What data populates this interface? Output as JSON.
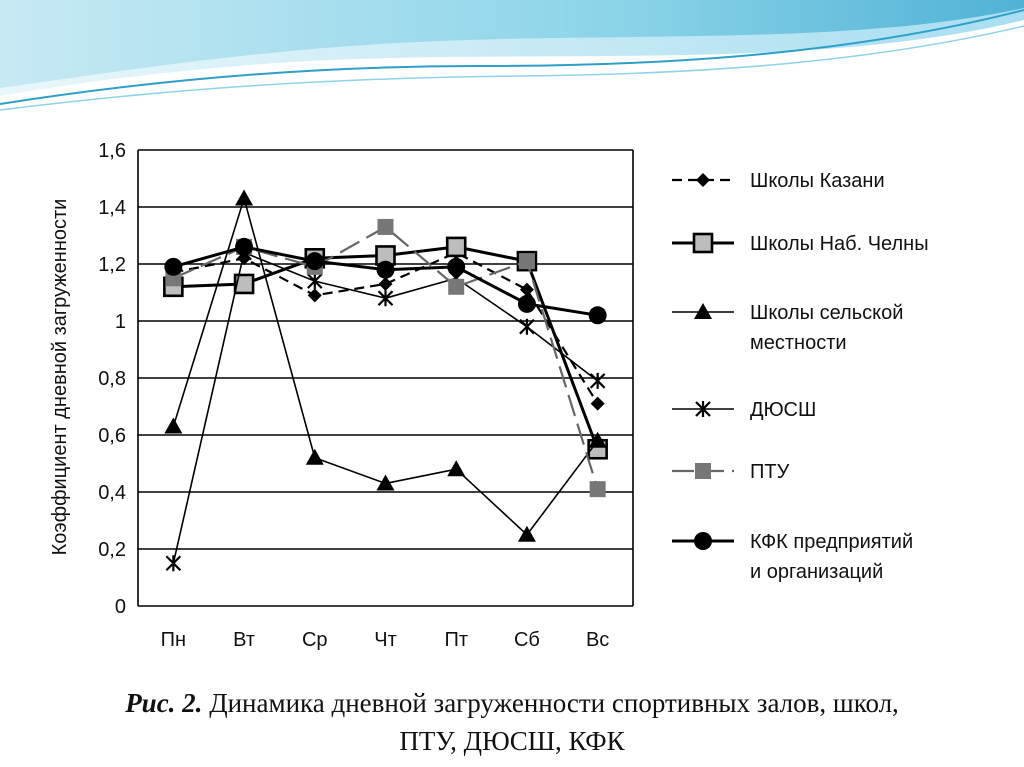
{
  "caption": {
    "label": "Рис. 2.",
    "line1": "Динамика дневной загруженности спортивных залов, школ,",
    "line2": "ПТУ, ДЮСШ, КФК"
  },
  "chart_data": {
    "type": "line",
    "ylabel": "Коэффициент дневной загруженности",
    "xlabel": "",
    "ylim": [
      0,
      1.6
    ],
    "yticks": [
      0,
      0.2,
      0.4,
      0.6,
      0.8,
      1,
      1.2,
      1.4,
      1.6
    ],
    "ytick_labels": [
      "0",
      "0,2",
      "0,4",
      "0,6",
      "0,8",
      "1",
      "1,2",
      "1,4",
      "1,6"
    ],
    "grid": true,
    "legend_position": "right",
    "categories": [
      "Пн",
      "Вт",
      "Ср",
      "Чт",
      "Пт",
      "Сб",
      "Вс"
    ],
    "series": [
      {
        "name": "Школы Казани",
        "marker": "diamond",
        "dash": "dashed",
        "color": "#000000",
        "values": [
          1.17,
          1.22,
          1.09,
          1.13,
          1.24,
          1.11,
          0.71
        ]
      },
      {
        "name": "Школы Наб. Челны",
        "marker": "square-open",
        "dash": "solid-thick",
        "color": "#000000",
        "values": [
          1.12,
          1.13,
          1.22,
          1.23,
          1.26,
          1.21,
          0.55
        ]
      },
      {
        "name": "Школы сельской местности",
        "marker": "triangle",
        "dash": "solid",
        "color": "#000000",
        "values": [
          0.63,
          1.43,
          0.52,
          0.43,
          0.48,
          0.25,
          0.58
        ]
      },
      {
        "name": "ДЮСШ",
        "marker": "star",
        "dash": "solid",
        "color": "#000000",
        "values": [
          0.15,
          1.24,
          1.14,
          1.08,
          1.15,
          0.98,
          0.79
        ]
      },
      {
        "name": "ПТУ",
        "marker": "square-gray",
        "dash": "long-dash",
        "color": "#666666",
        "values": [
          1.15,
          1.26,
          1.19,
          1.33,
          1.12,
          1.21,
          0.41
        ]
      },
      {
        "name": "КФК предприятий и организаций",
        "marker": "circle",
        "dash": "solid-thick",
        "color": "#000000",
        "values": [
          1.19,
          1.26,
          1.21,
          1.18,
          1.19,
          1.06,
          1.02
        ]
      }
    ]
  }
}
